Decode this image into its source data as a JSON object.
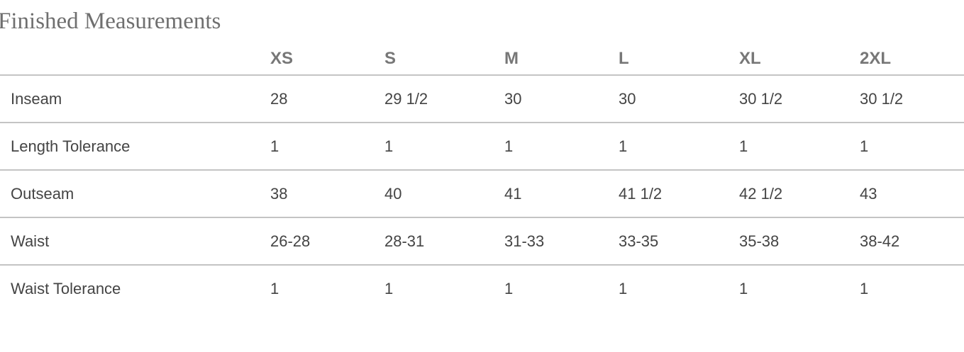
{
  "title": "Finished Measurements",
  "columns": [
    "",
    "XS",
    "S",
    "M",
    "L",
    "XL",
    "2XL"
  ],
  "rows": [
    {
      "label": "Inseam",
      "values": [
        "28",
        "29 1/2",
        "30",
        "30",
        "30 1/2",
        "30 1/2"
      ]
    },
    {
      "label": "Length Tolerance",
      "values": [
        "1",
        "1",
        "1",
        "1",
        "1",
        "1"
      ]
    },
    {
      "label": "Outseam",
      "values": [
        "38",
        "40",
        "41",
        "41 1/2",
        "42 1/2",
        "43"
      ]
    },
    {
      "label": "Waist",
      "values": [
        "26-28",
        "28-31",
        "31-33",
        "33-35",
        "35-38",
        "38-42"
      ]
    },
    {
      "label": "Waist Tolerance",
      "values": [
        "1",
        "1",
        "1",
        "1",
        "1",
        "1"
      ]
    }
  ]
}
